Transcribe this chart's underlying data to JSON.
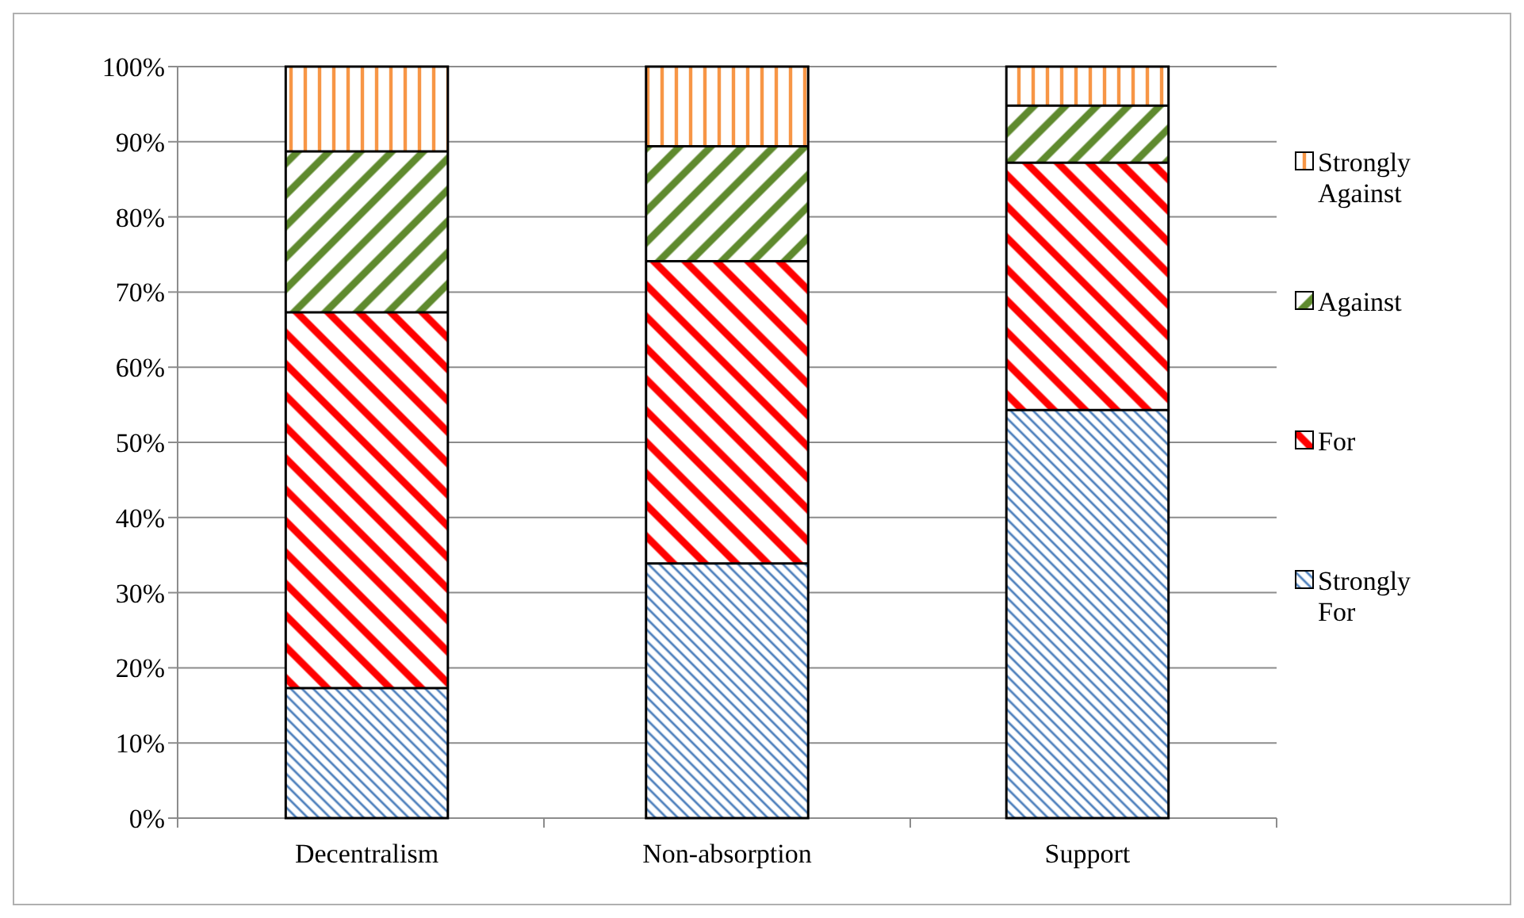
{
  "chart_data": {
    "type": "bar",
    "stacked": true,
    "categories": [
      "Decentralism",
      "Non-absorption",
      "Support"
    ],
    "series": [
      {
        "name": "Strongly For",
        "color": "#4f81bd",
        "values": [
          17.3,
          33.9,
          54.3
        ]
      },
      {
        "name": "For",
        "color": "#ff0000",
        "values": [
          50,
          40.2,
          32.9
        ]
      },
      {
        "name": "Against",
        "color": "#5f8a2e",
        "values": [
          21.4,
          15.3,
          7.6
        ]
      },
      {
        "name": "Strongly Against",
        "color": "#f79646",
        "values": [
          11.3,
          10.6,
          5.2
        ]
      }
    ],
    "ylim": [
      0,
      100
    ],
    "yticks": [
      {
        "value": 0,
        "label": "0%"
      },
      {
        "value": 10,
        "label": "10%"
      },
      {
        "value": 20,
        "label": "20%"
      },
      {
        "value": 30,
        "label": "30%"
      },
      {
        "value": 40,
        "label": "40%"
      },
      {
        "value": 50,
        "label": "50%"
      },
      {
        "value": 60,
        "label": "60%"
      },
      {
        "value": 70,
        "label": "70%"
      },
      {
        "value": 80,
        "label": "80%"
      },
      {
        "value": 90,
        "label": "90%"
      },
      {
        "value": 100,
        "label": "100%"
      }
    ],
    "grid": "y",
    "legend": "right"
  }
}
